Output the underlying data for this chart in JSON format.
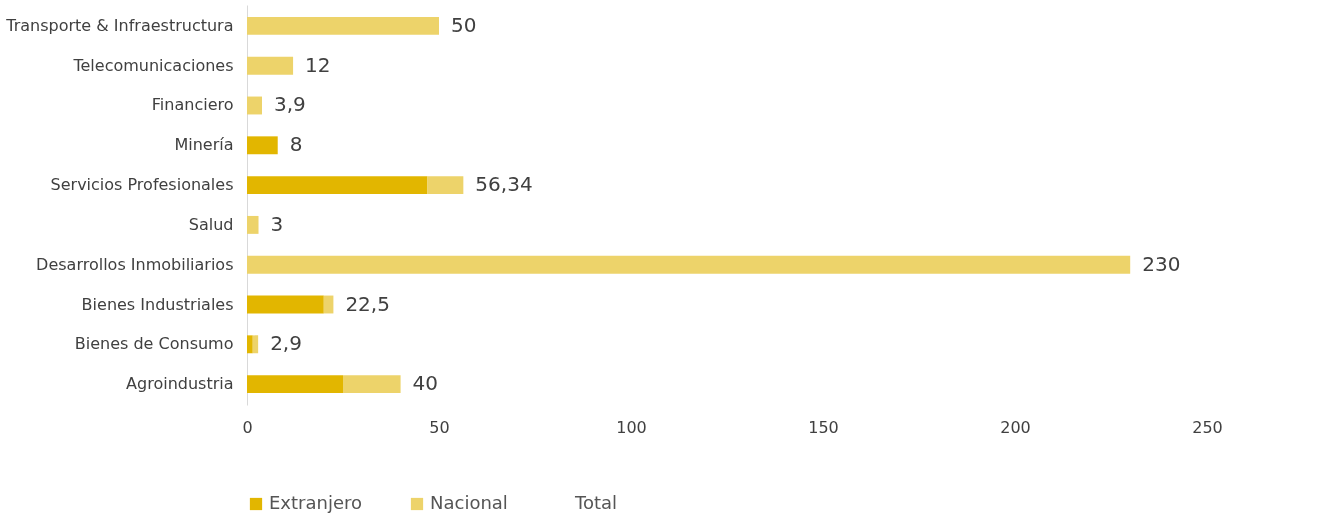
{
  "chart_data": {
    "type": "bar",
    "orientation": "horizontal",
    "stacked": true,
    "categories": [
      "Transporte & Infraestructura",
      "Telecomunicaciones",
      "Financiero",
      "Minería",
      "Servicios Profesionales",
      "Salud",
      "Desarrollos Inmobiliarios",
      "Bienes Industriales",
      "Bienes de Consumo",
      "Agroindustria"
    ],
    "series": [
      {
        "name": "Extranjero",
        "color": "#e2b600",
        "values": [
          null,
          null,
          null,
          8,
          47,
          null,
          null,
          20,
          1.5,
          25
        ]
      },
      {
        "name": "Nacional",
        "color": "#edd36a",
        "values": [
          50,
          12,
          3.9,
          null,
          9.34,
          3,
          230,
          2.5,
          1.4,
          15
        ]
      },
      {
        "name": "Total",
        "values": [
          null,
          null,
          null,
          null,
          null,
          null,
          null,
          null,
          null,
          null
        ]
      }
    ],
    "totals": [
      "50",
      "12",
      "3,9",
      "8",
      "56,34",
      "3",
      "230",
      "22,5",
      "2,9",
      "40"
    ],
    "xlim": [
      0,
      250
    ],
    "xticks": [
      0,
      50,
      100,
      150,
      200,
      250
    ],
    "grid": false,
    "legend": "bottom"
  }
}
